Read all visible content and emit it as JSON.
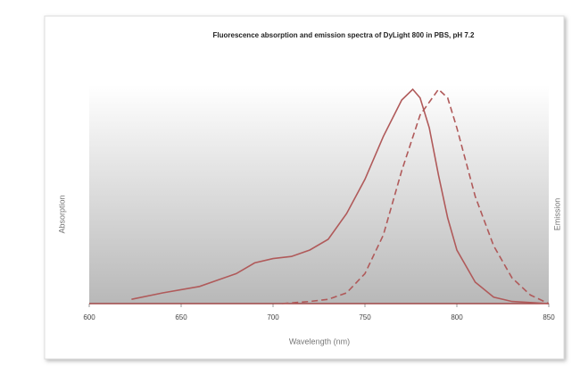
{
  "chart_data": {
    "type": "line",
    "title": "Fluorescence absorption and emission spectra of DyLight 800 in PBS, pH 7.2",
    "x_label": "Wavelength (nm)",
    "y_label": "Absorption",
    "y2_label": "Emission",
    "xlim": [
      600,
      850
    ],
    "xticks": [
      600,
      650,
      700,
      750,
      800,
      850
    ],
    "ylim": [
      0,
      1
    ],
    "series": [
      {
        "name": "Absorption",
        "color": "#b05a5a",
        "dash": false,
        "x": [
          623,
          640,
          660,
          680,
          690,
          700,
          710,
          720,
          730,
          740,
          750,
          760,
          770,
          776,
          780,
          785,
          790,
          795,
          800,
          810,
          820,
          830,
          850
        ],
        "values": [
          0.02,
          0.05,
          0.08,
          0.14,
          0.19,
          0.21,
          0.22,
          0.25,
          0.3,
          0.42,
          0.58,
          0.78,
          0.95,
          1.0,
          0.96,
          0.82,
          0.6,
          0.4,
          0.25,
          0.1,
          0.03,
          0.01,
          0
        ]
      },
      {
        "name": "Emission",
        "color": "#b05a5a",
        "dash": true,
        "axis": "y2",
        "x": [
          705,
          720,
          730,
          740,
          750,
          760,
          770,
          780,
          790,
          795,
          800,
          810,
          820,
          830,
          840,
          850
        ],
        "values": [
          0,
          0.01,
          0.02,
          0.05,
          0.14,
          0.32,
          0.62,
          0.88,
          1.0,
          0.96,
          0.82,
          0.5,
          0.27,
          0.12,
          0.04,
          0
        ]
      }
    ]
  }
}
